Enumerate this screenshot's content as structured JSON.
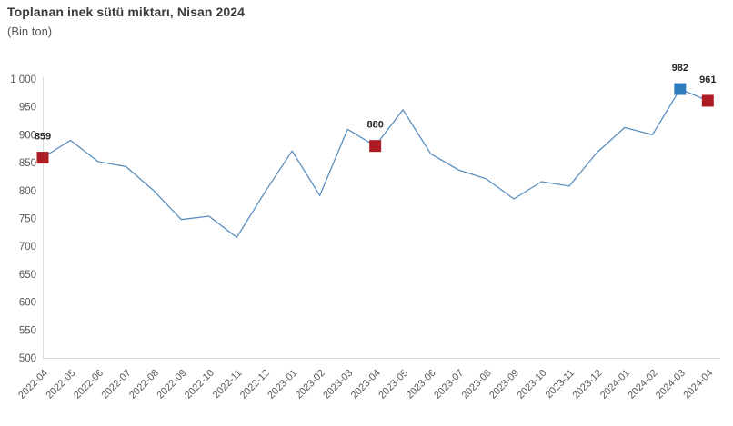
{
  "header": {
    "title": "Toplanan inek sütü miktarı, Nisan 2024",
    "subtitle": "(Bin ton)"
  },
  "chart_data": {
    "type": "line",
    "title": "Toplanan inek sütü miktarı, Nisan 2024",
    "subtitle": "(Bin ton)",
    "x": [
      "2022-04",
      "2022-05",
      "2022-06",
      "2022-07",
      "2022-08",
      "2022-09",
      "2022-10",
      "2022-11",
      "2022-12",
      "2023-01",
      "2023-02",
      "2023-03",
      "2023-04",
      "2023-05",
      "2023-06",
      "2023-07",
      "2023-08",
      "2023-09",
      "2023-10",
      "2023-11",
      "2023-12",
      "2024-01",
      "2024-02",
      "2024-03",
      "2024-04"
    ],
    "values": [
      859,
      890,
      852,
      843,
      800,
      748,
      754,
      716,
      796,
      871,
      791,
      910,
      880,
      945,
      866,
      837,
      821,
      785,
      816,
      808,
      868,
      913,
      900,
      982,
      961
    ],
    "xlabel": "",
    "ylabel": "",
    "ylim": [
      500,
      1000
    ],
    "yticks": [
      500,
      550,
      600,
      650,
      700,
      750,
      800,
      850,
      900,
      950,
      1000
    ],
    "ytick_labels": [
      "500",
      "550",
      "600",
      "650",
      "700",
      "750",
      "800",
      "850",
      "900",
      "950",
      "1 000"
    ],
    "grid": false,
    "legend": false,
    "x_labels_rotated_degrees": 45,
    "line_color": "#5a8fbf",
    "axis_color": "#dcdcdc",
    "tick_label_color": "#595959",
    "value_label_color": "#262626",
    "highlighted_points": [
      {
        "x": "2022-04",
        "value": 859,
        "label": "859",
        "marker_color": "#ae1c23",
        "marker_shape": "square"
      },
      {
        "x": "2023-04",
        "value": 880,
        "label": "880",
        "marker_color": "#ae1c23",
        "marker_shape": "square"
      },
      {
        "x": "2024-03",
        "value": 982,
        "label": "982",
        "marker_color": "#2e7cbd",
        "marker_shape": "square"
      },
      {
        "x": "2024-04",
        "value": 961,
        "label": "961",
        "marker_color": "#ae1c23",
        "marker_shape": "square"
      }
    ]
  }
}
